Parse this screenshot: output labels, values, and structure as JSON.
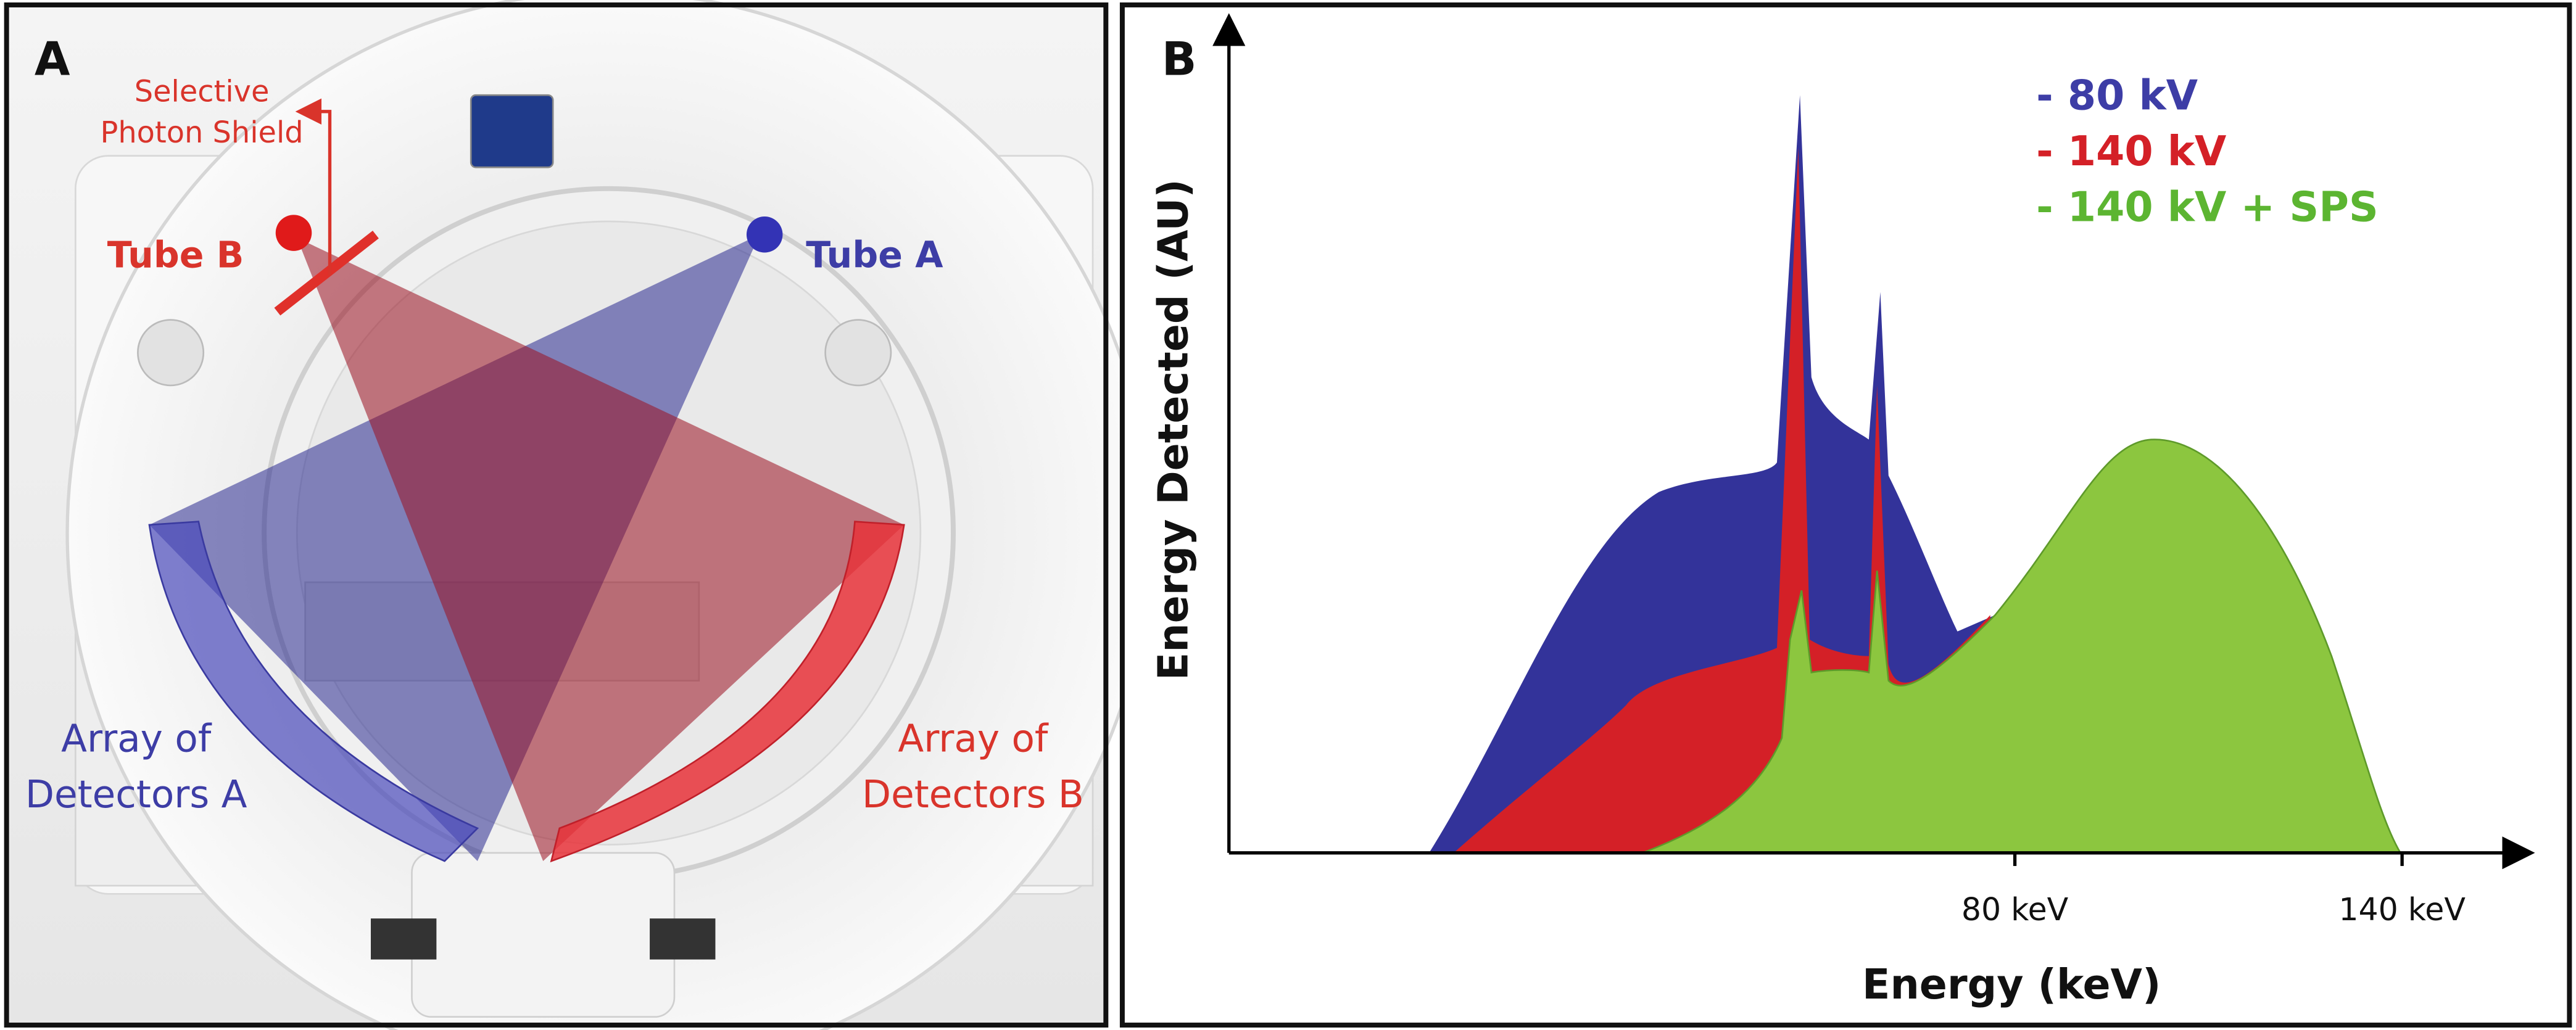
{
  "panel_a": {
    "label": "A",
    "shield_label": [
      "Selective",
      "Photon Shield"
    ],
    "tube_b": "Tube B",
    "tube_a": "Tube A",
    "detectors_a": [
      "Array of",
      "Detectors A"
    ],
    "detectors_b": [
      "Array of",
      "Detectors B"
    ]
  },
  "panel_b": {
    "label": "B",
    "legend": [
      "- 80 kV",
      "- 140 kV",
      "- 140 kV + SPS"
    ],
    "y_axis_label": "Energy  Detected (AU)",
    "x_axis_label": "Energy (keV)",
    "x_ticks": [
      "80 keV",
      "140 keV"
    ]
  }
}
